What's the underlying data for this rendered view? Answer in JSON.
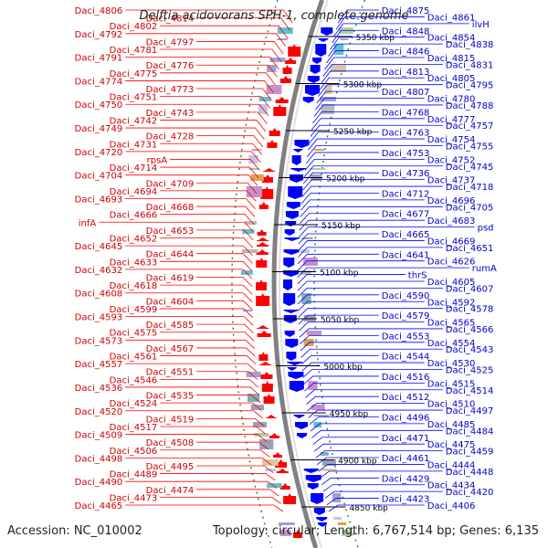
{
  "title": "Delftia acidovorans SPH-1, complete genome",
  "accession": "Accession: NC_010002",
  "topology": "Topology: circular; Length: 6,767,514 bp; Genes: 6,135",
  "colors": {
    "reverse_strand": "#ff0000",
    "forward_strand": "#0000ff",
    "backbone": "#808080",
    "gc_dots": "#2e8b2e",
    "label_left": "#cc0000",
    "label_right": "#0000cc"
  },
  "scale_ticks": [
    "5350 kbp",
    "5300 kbp",
    "5250 kbp",
    "5200 kbp",
    "5150 kbp",
    "5100 kbp",
    "5050 kbp",
    "5000 kbp",
    "4950 kbp",
    "4900 kbp",
    "4850 kbp"
  ],
  "left_labels": [
    "Daci_4806",
    "Daci_4814",
    "Daci_4802",
    "Daci_4792",
    "Daci_4797",
    "Daci_4781",
    "Daci_4791",
    "Daci_4776",
    "Daci_4775",
    "Daci_4774",
    "Daci_4773",
    "Daci_4751",
    "Daci_4750",
    "Daci_4743",
    "Daci_4742",
    "Daci_4749",
    "Daci_4728",
    "Daci_4731",
    "Daci_4720",
    "rpsA",
    "Daci_4714",
    "Daci_4704",
    "Daci_4709",
    "Daci_4694",
    "Daci_4693",
    "Daci_4668",
    "Daci_4666",
    "infA",
    "Daci_4653",
    "Daci_4652",
    "Daci_4645",
    "Daci_4644",
    "Daci_4633",
    "Daci_4632",
    "Daci_4619",
    "Daci_4618",
    "Daci_4608",
    "Daci_4604",
    "Daci_4599",
    "Daci_4593",
    "Daci_4585",
    "Daci_4575",
    "Daci_4573",
    "Daci_4567",
    "Daci_4561",
    "Daci_4557",
    "Daci_4551",
    "Daci_4546",
    "Daci_4536",
    "Daci_4535",
    "Daci_4524",
    "Daci_4520",
    "Daci_4519",
    "Daci_4517",
    "Daci_4509",
    "Daci_4508",
    "Daci_4506",
    "Daci_4498",
    "Daci_4495",
    "Daci_4489",
    "Daci_4490",
    "Daci_4474",
    "Daci_4473",
    "Daci_4465"
  ],
  "right_labels": [
    "Daci_4875",
    "Daci_4861",
    "ilvH",
    "Daci_4848",
    "Daci_4854",
    "Daci_4838",
    "Daci_4846",
    "Daci_4815",
    "Daci_4831",
    "Daci_4813",
    "Daci_4805",
    "Daci_4795",
    "Daci_4807",
    "Daci_4780",
    "Daci_4788",
    "Daci_4768",
    "Daci_4777",
    "Daci_4757",
    "Daci_4763",
    "Daci_4754",
    "Daci_4755",
    "Daci_4753",
    "Daci_4752",
    "Daci_4745",
    "Daci_4736",
    "Daci_4737",
    "Daci_4718",
    "Daci_4712",
    "Daci_4696",
    "Daci_4705",
    "Daci_4677",
    "Daci_4683",
    "psd",
    "Daci_4665",
    "Daci_4669",
    "Daci_4651",
    "Daci_4641",
    "Daci_4626",
    "rumA",
    "thrS",
    "Daci_4605",
    "Daci_4607",
    "Daci_4590",
    "Daci_4592",
    "Daci_4578",
    "Daci_4579",
    "Daci_4565",
    "Daci_4566",
    "Daci_4553",
    "Daci_4554",
    "Daci_4543",
    "Daci_4544",
    "Daci_4530",
    "Daci_4525",
    "Daci_4516",
    "Daci_4515",
    "Daci_4514",
    "Daci_4512",
    "Daci_4510",
    "Daci_4497",
    "Daci_4496",
    "Daci_4485",
    "Daci_4484",
    "Daci_4471",
    "Daci_4475",
    "Daci_4459",
    "Daci_4461",
    "Daci_4444",
    "Daci_4448",
    "Daci_4429",
    "Daci_4434",
    "Daci_4420",
    "Daci_4423",
    "Daci_4406"
  ]
}
